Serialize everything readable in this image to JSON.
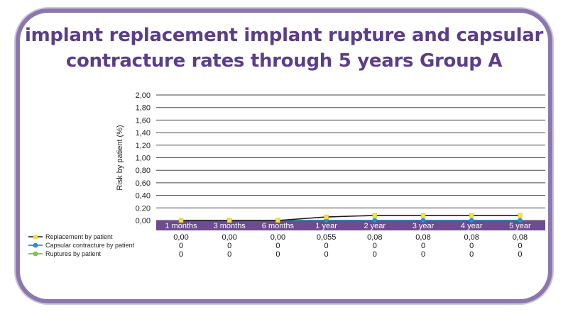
{
  "chart_data": {
    "type": "line",
    "title": "implant replacement implant rupture and capsular contracture rates through 5 years Group A",
    "ylabel": "Risk by patient (%)",
    "xlabel": "",
    "ylim": [
      0,
      2
    ],
    "y_ticks": [
      "2,00",
      "1,80",
      "1,60",
      "1,40",
      "1,20",
      "1,00",
      "0,80",
      "0,60",
      "0,40",
      "0.20",
      "0,00"
    ],
    "y_tick_values": [
      2.0,
      1.8,
      1.6,
      1.4,
      1.2,
      1.0,
      0.8,
      0.6,
      0.4,
      0.2,
      0.0
    ],
    "categories": [
      "1 months",
      "3 months",
      "6 months",
      "1 year",
      "2 year",
      "3 year",
      "4 year",
      "5 year"
    ],
    "grid": true,
    "legend_position": "bottom-left table",
    "series": [
      {
        "name": "Replacement by patient",
        "line_color": "#1a1a1a",
        "marker_color": "#f2e33a",
        "values": [
          0.0,
          0.0,
          0.0,
          0.055,
          0.08,
          0.08,
          0.08,
          0.08
        ],
        "labels": [
          "0,00",
          "0,00",
          "0,00",
          "0,055",
          "0,08",
          "0,08",
          "0,08",
          "0,08"
        ]
      },
      {
        "name": "Capsular contracture by patient",
        "line_color": "#1f6fb0",
        "marker_color": "#2a8fd0",
        "values": [
          0,
          0,
          0,
          0,
          0,
          0,
          0,
          0
        ],
        "labels": [
          "0",
          "0",
          "0",
          "0",
          "0",
          "0",
          "0",
          "0"
        ]
      },
      {
        "name": "Ruptures by patient",
        "line_color": "#6aa84f",
        "marker_color": "#8bc34a",
        "values": [
          0,
          0,
          0,
          0,
          0,
          0,
          0,
          0
        ],
        "labels": [
          "0",
          "0",
          "0",
          "0",
          "0",
          "0",
          "0",
          "0"
        ]
      }
    ],
    "colors": {
      "frame": "#8a78ad",
      "title": "#5a3f86",
      "category_band": "#6e4c8f",
      "grid": "#4a4a4a"
    }
  }
}
